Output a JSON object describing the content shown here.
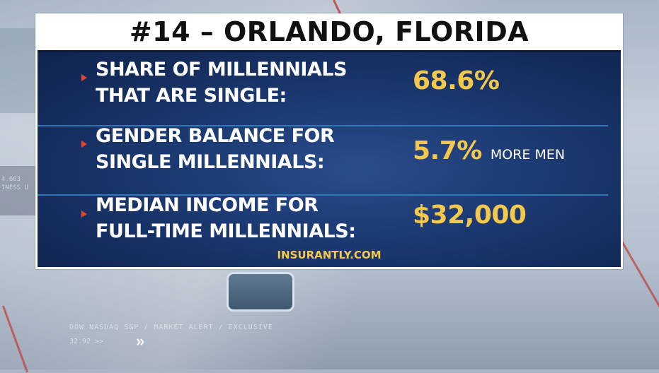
{
  "title": "#14 – ORLANDO, FLORIDA",
  "rows": [
    {
      "label": "SHARE OF MILLENNIALS\nTHAT ARE SINGLE:",
      "value": "68.6%",
      "suffix": ""
    },
    {
      "label": "GENDER BALANCE FOR\nSINGLE MILLENNIALS:",
      "value": "5.7%",
      "suffix": "MORE MEN"
    },
    {
      "label": "MEDIAN INCOME FOR\nFULL-TIME MILLENNIALS:",
      "value": "$32,000",
      "suffix": ""
    }
  ],
  "source": "INSURANTLY.COM",
  "background_text": {
    "ticker_line": "DOW NASDAQ S&P / MARKET ALERT / EXCLUSIVE",
    "ticker_value": "32.92 >>",
    "left_text": "4.663\nINESS U"
  },
  "colors": {
    "panel": "#1c3a73",
    "accent_value": "#f4c84a",
    "bullet": "#e8432b",
    "divider": "#2e78b8"
  },
  "icons": [
    "triangle-bullet-icon",
    "chevron-right-icon"
  ]
}
